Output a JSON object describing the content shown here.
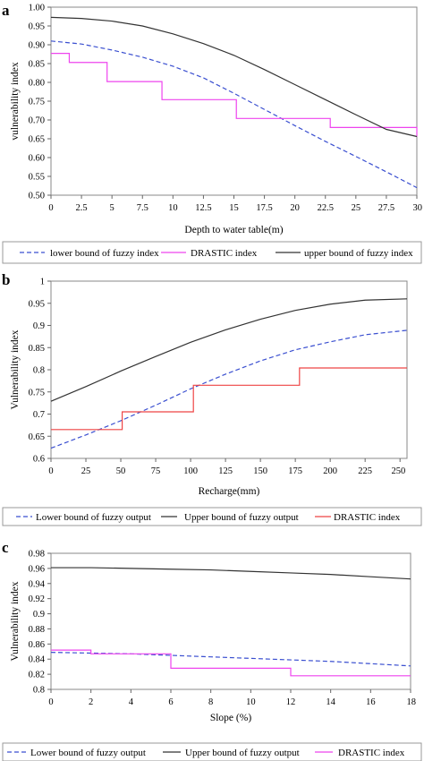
{
  "chart_data": [
    {
      "panel_label": "a",
      "type": "line",
      "xlabel": "Depth to water table(m)",
      "ylabel": "vulnerability index",
      "xlim": [
        0,
        30
      ],
      "ylim": [
        0.5,
        1.0
      ],
      "xticks": [
        0,
        2.5,
        5,
        7.5,
        10,
        12.5,
        15,
        17.5,
        20,
        22.5,
        25,
        27.5,
        30
      ],
      "xtick_labels": [
        "0",
        "2.5",
        "5",
        "7.5",
        "10",
        "12.5",
        "15",
        "17.5",
        "20",
        "22.5",
        "25",
        "27.5",
        "30"
      ],
      "yticks": [
        0.5,
        0.55,
        0.6,
        0.65,
        0.7,
        0.75,
        0.8,
        0.85,
        0.9,
        0.95,
        1.0
      ],
      "ytick_labels": [
        "0.50",
        "0.55",
        "0.60",
        "0.65",
        "0.70",
        "0.75",
        "0.80",
        "0.85",
        "0.90",
        "0.95",
        "1.00"
      ],
      "grid": false,
      "legend_position": "bottom",
      "series": [
        {
          "name": "lower bound of fuzzy index",
          "color": "#3a4fd0",
          "dash": "dashed",
          "shape": "linear",
          "x": [
            0,
            2.5,
            5,
            7.5,
            10,
            12.5,
            15,
            17.5,
            20,
            22.5,
            25,
            27.5,
            30
          ],
          "y": [
            0.91,
            0.902,
            0.886,
            0.867,
            0.843,
            0.812,
            0.771,
            0.728,
            0.685,
            0.643,
            0.603,
            0.562,
            0.52
          ]
        },
        {
          "name": "DRASTIC index",
          "color": "#ee44ee",
          "dash": "solid",
          "shape": "step",
          "x": [
            0,
            1.5,
            4.6,
            9.1,
            15.2,
            22.9,
            30
          ],
          "y": [
            0.877,
            0.853,
            0.802,
            0.754,
            0.704,
            0.68,
            0.656
          ]
        },
        {
          "name": "upper bound of fuzzy index",
          "color": "#333333",
          "dash": "solid",
          "shape": "linear",
          "x": [
            0,
            2.5,
            5,
            7.5,
            10,
            12.5,
            15,
            17.5,
            20,
            22.5,
            25,
            27.5,
            30
          ],
          "y": [
            0.973,
            0.97,
            0.963,
            0.95,
            0.929,
            0.903,
            0.872,
            0.834,
            0.794,
            0.754,
            0.714,
            0.675,
            0.656
          ]
        }
      ]
    },
    {
      "panel_label": "b",
      "type": "line",
      "xlabel": "Recharge(mm)",
      "ylabel": "Vulnerability index",
      "xlim": [
        0,
        255
      ],
      "ylim": [
        0.6,
        1.0
      ],
      "xticks": [
        0,
        25,
        50,
        75,
        100,
        125,
        150,
        175,
        200,
        225,
        250
      ],
      "xtick_labels": [
        "0",
        "25",
        "50",
        "75",
        "100",
        "125",
        "150",
        "175",
        "200",
        "225",
        "250"
      ],
      "yticks": [
        0.6,
        0.65,
        0.7,
        0.75,
        0.8,
        0.85,
        0.9,
        0.95,
        1.0
      ],
      "ytick_labels": [
        "0.6",
        "0.65",
        "0.7",
        "0.75",
        "0.8",
        "0.85",
        "0.9",
        "0.95",
        "1"
      ],
      "grid": false,
      "legend_position": "bottom",
      "series": [
        {
          "name": "Lower bound of fuzzy output",
          "color": "#3a4fd0",
          "dash": "dashed",
          "shape": "linear",
          "x": [
            0,
            25,
            50,
            75,
            100,
            125,
            150,
            175,
            200,
            225,
            255
          ],
          "y": [
            0.623,
            0.653,
            0.685,
            0.72,
            0.757,
            0.79,
            0.82,
            0.845,
            0.863,
            0.879,
            0.889
          ]
        },
        {
          "name": "Upper bound of fuzzy output",
          "color": "#333333",
          "dash": "solid",
          "shape": "linear",
          "x": [
            0,
            25,
            50,
            75,
            100,
            125,
            150,
            175,
            200,
            225,
            255
          ],
          "y": [
            0.729,
            0.762,
            0.797,
            0.83,
            0.862,
            0.89,
            0.914,
            0.934,
            0.948,
            0.957,
            0.96
          ]
        },
        {
          "name": "DRASTIC index",
          "color": "#ee4444",
          "dash": "solid",
          "shape": "step",
          "x": [
            0,
            51,
            102,
            178,
            255
          ],
          "y": [
            0.665,
            0.705,
            0.765,
            0.804,
            0.804
          ]
        }
      ]
    },
    {
      "panel_label": "c",
      "type": "line",
      "xlabel": "Slope (%)",
      "ylabel": "Vulnerability index",
      "xlim": [
        0,
        18
      ],
      "ylim": [
        0.8,
        0.98
      ],
      "xticks": [
        0,
        2,
        4,
        6,
        8,
        10,
        12,
        14,
        16,
        18
      ],
      "xtick_labels": [
        "0",
        "2",
        "4",
        "6",
        "8",
        "10",
        "12",
        "14",
        "16",
        "18"
      ],
      "yticks": [
        0.8,
        0.82,
        0.84,
        0.86,
        0.88,
        0.9,
        0.92,
        0.94,
        0.96,
        0.98
      ],
      "ytick_labels": [
        "0.8",
        "0.82",
        "0.84",
        "0.86",
        "0.88",
        "0.9",
        "0.92",
        "0.94",
        "0.96",
        "0.98"
      ],
      "grid": false,
      "legend_position": "bottom",
      "series": [
        {
          "name": "Lower bound of fuzzy output",
          "color": "#3a4fd0",
          "dash": "dashed",
          "shape": "linear",
          "x": [
            0,
            2,
            4,
            6,
            8,
            10,
            12,
            14,
            16,
            18
          ],
          "y": [
            0.849,
            0.848,
            0.847,
            0.845,
            0.843,
            0.841,
            0.839,
            0.837,
            0.834,
            0.831
          ]
        },
        {
          "name": "Upper bound of fuzzy output",
          "color": "#333333",
          "dash": "solid",
          "shape": "linear",
          "x": [
            0,
            2,
            4,
            6,
            8,
            10,
            12,
            14,
            16,
            18
          ],
          "y": [
            0.961,
            0.961,
            0.96,
            0.959,
            0.958,
            0.956,
            0.954,
            0.952,
            0.949,
            0.946
          ]
        },
        {
          "name": "DRASTIC index",
          "color": "#ee44ee",
          "dash": "solid",
          "shape": "step",
          "x": [
            0,
            2,
            6,
            12,
            18
          ],
          "y": [
            0.852,
            0.847,
            0.828,
            0.818,
            0.818
          ]
        }
      ]
    }
  ]
}
